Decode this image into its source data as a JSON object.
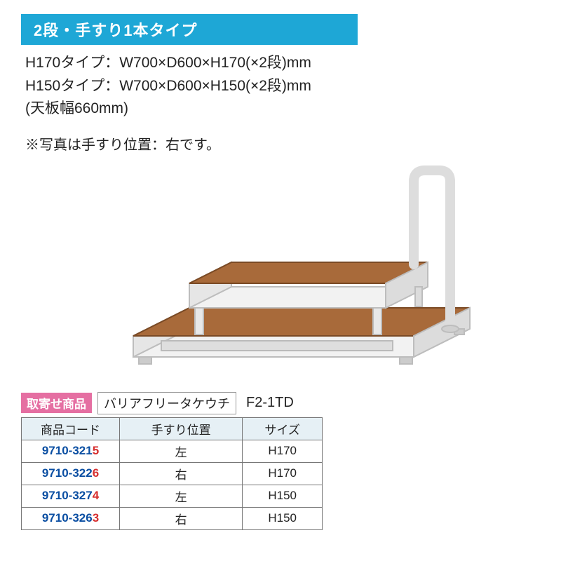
{
  "header": {
    "title": "2段・手すり1本タイプ"
  },
  "specs": {
    "line1": "H170タイプ：W700×D600×H170(×2段)mm",
    "line2": "H150タイプ：W700×D600×H150(×2段)mm",
    "line3": "(天板幅660mm)"
  },
  "note": "※写真は手すり位置：右です。",
  "product": {
    "badge": "取寄せ商品",
    "brand": "バリアフリータケウチ",
    "model": "F2-1TD"
  },
  "table": {
    "columns": [
      "商品コード",
      "手すり位置",
      "サイズ"
    ],
    "rows": [
      {
        "code_prefix": "9710-321",
        "code_suffix": "5",
        "position": "左",
        "size": "H170"
      },
      {
        "code_prefix": "9710-322",
        "code_suffix": "6",
        "position": "右",
        "size": "H170"
      },
      {
        "code_prefix": "9710-327",
        "code_suffix": "4",
        "position": "左",
        "size": "H150"
      },
      {
        "code_prefix": "9710-326",
        "code_suffix": "3",
        "position": "右",
        "size": "H150"
      }
    ],
    "colors": {
      "header_bg": "#e6f0f5",
      "code_color": "#0a4ea2",
      "suffix_color": "#d62e2e",
      "border": "#777"
    }
  },
  "image": {
    "step_top_color": "#a86a3a",
    "frame_color": "#e8e8e8",
    "frame_stroke": "#bdbdbd",
    "handrail_color": "#efefef"
  }
}
